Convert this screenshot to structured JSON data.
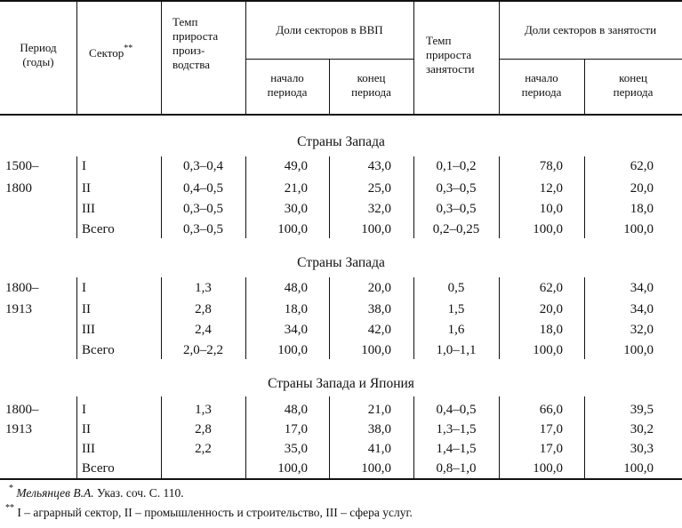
{
  "table": {
    "headers": {
      "period": "Период (годы)",
      "sector": "Сектор",
      "sector_mark": "**",
      "productivity_growth": [
        "Темп",
        "прироста",
        "произ-",
        "водства"
      ],
      "gdp_shares": "Доли секторов в ВВП",
      "gdp_start": [
        "начало",
        "периода"
      ],
      "gdp_end": [
        "конец",
        "периода"
      ],
      "employment_growth": [
        "Темп",
        "прироста",
        "занятости"
      ],
      "employment_shares": "Доли секторов в занятости",
      "emp_start": [
        "начало",
        "периода"
      ],
      "emp_end": [
        "конец",
        "периода"
      ]
    },
    "sections": [
      {
        "title": "Страны Запада",
        "period": [
          "1500–",
          "1800"
        ],
        "rows": [
          {
            "sector": "I",
            "prod": "0,3–0,4",
            "gdp_start": "49,0",
            "gdp_end": "43,0",
            "emp_growth": "0,1–0,2",
            "emp_start": "78,0",
            "emp_end": "62,0"
          },
          {
            "sector": "II",
            "prod": "0,4–0,5",
            "gdp_start": "21,0",
            "gdp_end": "25,0",
            "emp_growth": "0,3–0,5",
            "emp_start": "12,0",
            "emp_end": "20,0"
          },
          {
            "sector": "III",
            "prod": "0,3–0,5",
            "gdp_start": "30,0",
            "gdp_end": "32,0",
            "emp_growth": "0,3–0,5",
            "emp_start": "10,0",
            "emp_end": "18,0"
          },
          {
            "sector": "Всего",
            "prod": "0,3–0,5",
            "gdp_start": "100,0",
            "gdp_end": "100,0",
            "emp_growth": "0,2–0,25",
            "emp_start": "100,0",
            "emp_end": "100,0"
          }
        ]
      },
      {
        "title": "Страны Запада",
        "period": [
          "1800–",
          "1913"
        ],
        "rows": [
          {
            "sector": "I",
            "prod": "1,3",
            "gdp_start": "48,0",
            "gdp_end": "20,0",
            "emp_growth": "0,5",
            "emp_start": "62,0",
            "emp_end": "34,0"
          },
          {
            "sector": "II",
            "prod": "2,8",
            "gdp_start": "18,0",
            "gdp_end": "38,0",
            "emp_growth": "1,5",
            "emp_start": "20,0",
            "emp_end": "34,0"
          },
          {
            "sector": "III",
            "prod": "2,4",
            "gdp_start": "34,0",
            "gdp_end": "42,0",
            "emp_growth": "1,6",
            "emp_start": "18,0",
            "emp_end": "32,0"
          },
          {
            "sector": "Всего",
            "prod": "2,0–2,2",
            "gdp_start": "100,0",
            "gdp_end": "100,0",
            "emp_growth": "1,0–1,1",
            "emp_start": "100,0",
            "emp_end": "100,0"
          }
        ]
      },
      {
        "title": "Страны Запада и Япония",
        "period": [
          "1800–",
          "1913"
        ],
        "rows": [
          {
            "sector": "I",
            "prod": "1,3",
            "gdp_start": "48,0",
            "gdp_end": "21,0",
            "emp_growth": "0,4–0,5",
            "emp_start": "66,0",
            "emp_end": "39,5"
          },
          {
            "sector": "II",
            "prod": "2,8",
            "gdp_start": "17,0",
            "gdp_end": "38,0",
            "emp_growth": "1,3–1,5",
            "emp_start": "17,0",
            "emp_end": "30,2"
          },
          {
            "sector": "III",
            "prod": "2,2",
            "gdp_start": "35,0",
            "gdp_end": "41,0",
            "emp_growth": "1,4–1,5",
            "emp_start": "17,0",
            "emp_end": "30,3"
          },
          {
            "sector": "Всего",
            "prod": "",
            "gdp_start": "100,0",
            "gdp_end": "100,0",
            "emp_growth": "0,8–1,0",
            "emp_start": "100,0",
            "emp_end": "100,0"
          }
        ]
      }
    ]
  },
  "footnotes": [
    {
      "mark": "*",
      "italic": "Мельянцев В.А.",
      "text": " Указ. соч. С. 110."
    },
    {
      "mark": "**",
      "italic": "",
      "text": " I – аграрный сектор, II – промышленность и строительство, III – сфера услуг."
    }
  ]
}
